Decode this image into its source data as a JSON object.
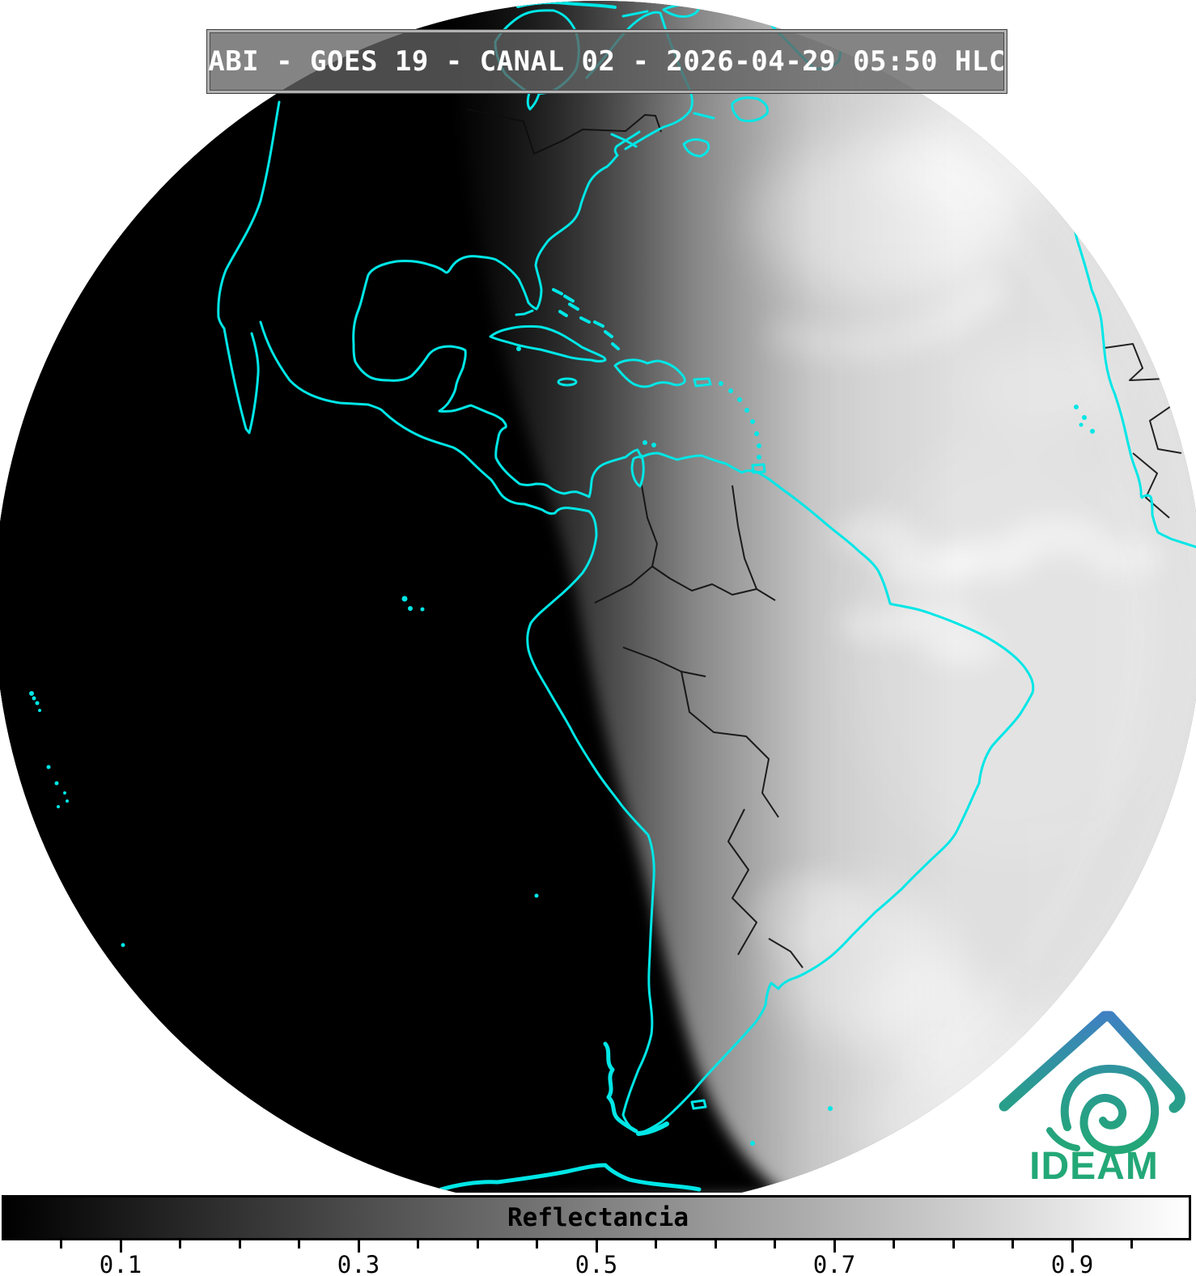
{
  "title_bar": {
    "text": "ABI - GOES 19 - CANAL 02 - 2026-04-29 05:50 HLC"
  },
  "colorbar": {
    "label": "Reflectancia",
    "min": 0,
    "max": 1,
    "gradient": [
      "#000000",
      "#ffffff"
    ],
    "major_ticks": [
      {
        "value": 0.1,
        "label": "0.1"
      },
      {
        "value": 0.3,
        "label": "0.3"
      },
      {
        "value": 0.5,
        "label": "0.5"
      },
      {
        "value": 0.7,
        "label": "0.7"
      },
      {
        "value": 0.9,
        "label": "0.9"
      }
    ],
    "minor_ticks": [
      0.05,
      0.15,
      0.2,
      0.25,
      0.35,
      0.4,
      0.45,
      0.55,
      0.6,
      0.65,
      0.75,
      0.8,
      0.85,
      0.95
    ]
  },
  "logo": {
    "text": "IDEAM",
    "color_top": "#3f80c3",
    "color_mid": "#2b9a93",
    "color_bottom": "#22a874",
    "text_color": "#23a877"
  },
  "colors": {
    "coastline": "#00e6e6",
    "night": "#000000",
    "background": "#ffffff",
    "country_borders": "#0d0d0d",
    "titlebar_text": "#ffffff"
  }
}
